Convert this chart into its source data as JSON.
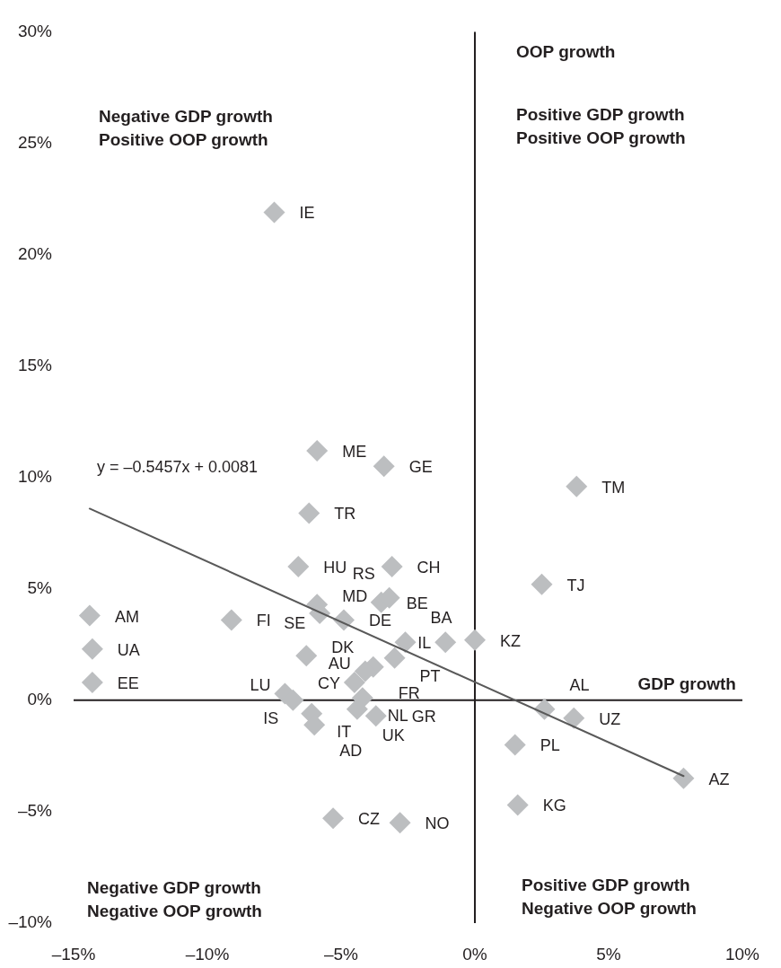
{
  "chart_data": {
    "type": "scatter",
    "marker": "diamond",
    "xlim": [
      -15,
      10
    ],
    "xticks": [
      {
        "value": -15,
        "label": "–15%"
      },
      {
        "value": -10,
        "label": "–10%"
      },
      {
        "value": -5,
        "label": "–5%"
      },
      {
        "value": 0,
        "label": "0%"
      },
      {
        "value": 5,
        "label": "5%"
      },
      {
        "value": 10,
        "label": "10%"
      }
    ],
    "ylim": [
      -10,
      30
    ],
    "yticks": [
      {
        "value": -10,
        "label": "–10%"
      },
      {
        "value": -5,
        "label": "–5%"
      },
      {
        "value": 0,
        "label": "0%"
      },
      {
        "value": 5,
        "label": "5%"
      },
      {
        "value": 10,
        "label": "10%"
      },
      {
        "value": 15,
        "label": "15%"
      },
      {
        "value": 20,
        "label": "20%"
      },
      {
        "value": 25,
        "label": "25%"
      },
      {
        "value": 30,
        "label": "30%"
      }
    ],
    "ref_lines": [
      {
        "axis": "x",
        "value": 0,
        "color": "#231f20",
        "label": "OOP growth"
      },
      {
        "axis": "y",
        "value": 0,
        "color": "#231f20",
        "label": "GDP growth"
      }
    ],
    "series": [
      {
        "type": "scatter",
        "color": "#bcbec0",
        "x": [
          -7.5,
          -5.9,
          -3.4,
          3.8,
          -6.2,
          -6.6,
          -3.1,
          2.5,
          -14.4,
          -9.1,
          -5.9,
          -5.8,
          -3.5,
          -3.2,
          -4.9,
          -14.3,
          -6.3,
          -2.6,
          -1.1,
          0.0,
          -3.0,
          -3.8,
          -4.1,
          -14.3,
          -4.5,
          -7.1,
          -6.8,
          -4.2,
          -6.1,
          -4.4,
          -3.7,
          -6.0,
          2.6,
          3.7,
          1.5,
          7.8,
          1.6,
          -5.3,
          -2.8
        ],
        "values": [
          21.9,
          11.2,
          10.5,
          9.6,
          8.4,
          6.0,
          6.0,
          5.2,
          3.8,
          3.6,
          4.3,
          3.9,
          4.4,
          4.6,
          3.6,
          2.3,
          2.0,
          2.6,
          2.6,
          2.7,
          1.9,
          1.5,
          1.3,
          0.8,
          0.8,
          0.3,
          0.0,
          0.1,
          -0.6,
          -0.4,
          -0.7,
          -1.1,
          -0.4,
          -0.8,
          -2.0,
          -3.5,
          -4.7,
          -5.3,
          -5.5
        ]
      },
      {
        "type": "line",
        "color": "#595959",
        "marker": "none",
        "line_style": "solid",
        "x": [
          -14.4,
          7.8
        ],
        "values": [
          8.6,
          -3.4
        ]
      }
    ],
    "annotations": [
      "Negative GDP growth\nPositive OOP growth",
      "Positive GDP growth\nPositive OOP growth",
      "y = –0.5457x + 0.0081",
      "Negative GDP growth\nNegative OOP growth",
      "Positive GDP growth\nNegative OOP growth",
      {
        "text": "IE",
        "x": -7.5,
        "y": 21.9
      },
      {
        "text": "ME",
        "x": -5.9,
        "y": 11.2
      },
      {
        "text": "GE",
        "x": -3.4,
        "y": 10.5
      },
      {
        "text": "TM",
        "x": 3.8,
        "y": 9.6
      },
      {
        "text": "TR",
        "x": -6.2,
        "y": 8.4
      },
      {
        "text": "HU",
        "x": -6.6,
        "y": 6.0
      },
      {
        "text": "CH",
        "x": -3.1,
        "y": 6.0
      },
      {
        "text": "TJ",
        "x": 2.5,
        "y": 5.2
      },
      {
        "text": "AM",
        "x": -14.4,
        "y": 3.8
      },
      {
        "text": "FI",
        "x": -9.1,
        "y": 3.6
      },
      {
        "text": "MD",
        "x": -5.9,
        "y": 4.3
      },
      {
        "text": "SE",
        "x": -5.8,
        "y": 3.9
      },
      {
        "text": "BE",
        "x": -3.5,
        "y": 4.4
      },
      {
        "text": "RS",
        "x": -3.2,
        "y": 4.6
      },
      {
        "text": "DE",
        "x": -4.9,
        "y": 3.6
      },
      {
        "text": "UA",
        "x": -14.3,
        "y": 2.3
      },
      {
        "text": "DK",
        "x": -6.3,
        "y": 2.0
      },
      {
        "text": "BA",
        "x": -2.6,
        "y": 2.6
      },
      {
        "text": "IL",
        "x": -1.1,
        "y": 2.6
      },
      {
        "text": "KZ",
        "x": 0.0,
        "y": 2.7
      },
      {
        "text": "PT",
        "x": -3.0,
        "y": 1.9
      },
      {
        "text": "FR",
        "x": -3.8,
        "y": 1.5
      },
      {
        "text": "AU",
        "x": -4.1,
        "y": 1.3
      },
      {
        "text": "EE",
        "x": -14.3,
        "y": 0.8
      },
      {
        "text": "CY",
        "x": -4.5,
        "y": 0.8
      },
      {
        "text": "LU",
        "x": -7.1,
        "y": 0.3
      },
      {
        "text": "IS",
        "x": -6.8,
        "y": 0.0
      },
      {
        "text": "NL",
        "x": -4.2,
        "y": 0.1
      },
      {
        "text": "IT",
        "x": -6.1,
        "y": -0.6
      },
      {
        "text": "UK",
        "x": -4.4,
        "y": -0.4
      },
      {
        "text": "GR",
        "x": -3.7,
        "y": -0.7
      },
      {
        "text": "AD",
        "x": -6.0,
        "y": -1.1
      },
      {
        "text": "AL",
        "x": 2.6,
        "y": -0.4
      },
      {
        "text": "UZ",
        "x": 3.7,
        "y": -0.8
      },
      {
        "text": "PL",
        "x": 1.5,
        "y": -2.0
      },
      {
        "text": "AZ",
        "x": 7.8,
        "y": -3.5
      },
      {
        "text": "KG",
        "x": 1.6,
        "y": -4.7
      },
      {
        "text": "CZ",
        "x": -5.3,
        "y": -5.3
      },
      {
        "text": "NO",
        "x": -2.8,
        "y": -5.5
      }
    ]
  }
}
